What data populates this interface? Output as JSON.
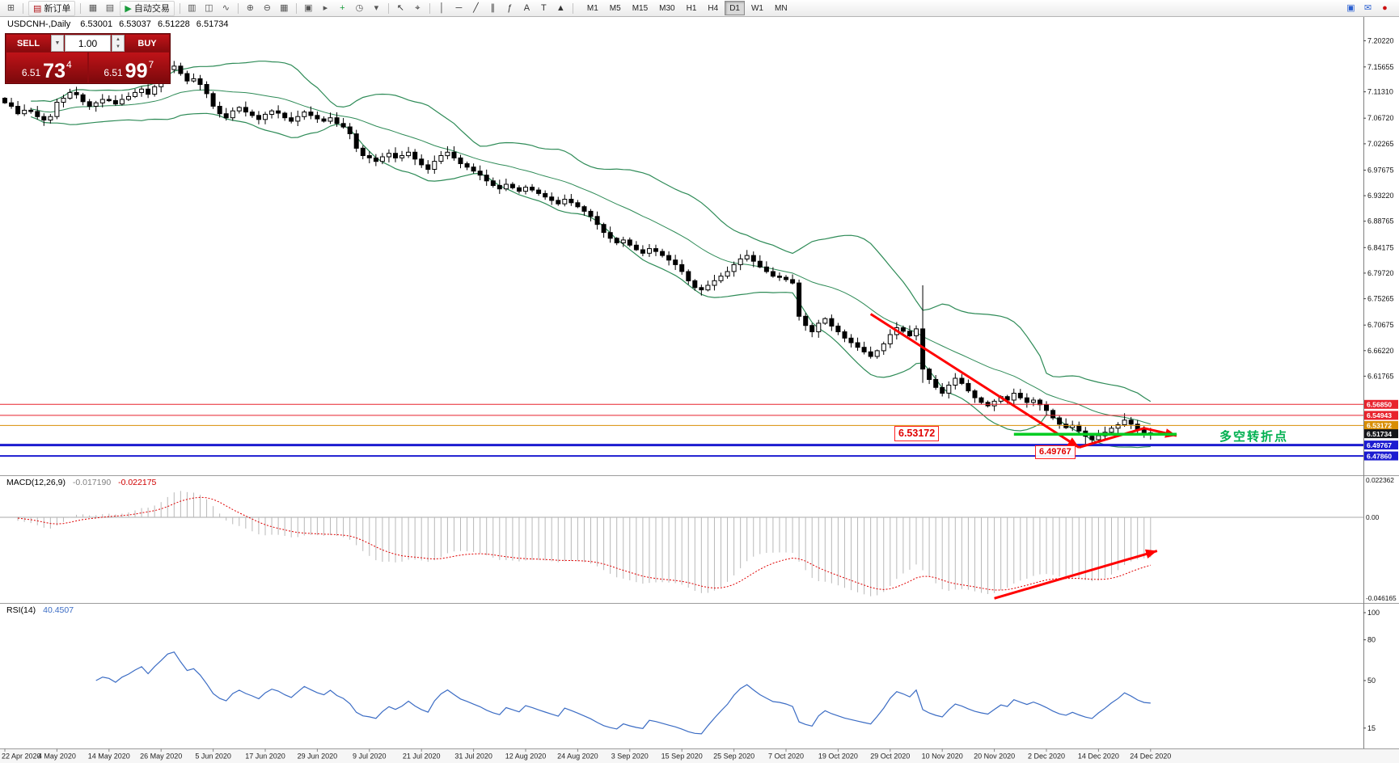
{
  "toolbar": {
    "new_order_label": "新订单",
    "auto_trading_label": "自动交易",
    "timeframes": [
      "M1",
      "M5",
      "M15",
      "M30",
      "H1",
      "H4",
      "D1",
      "W1",
      "MN"
    ],
    "active_timeframe": "D1",
    "icons": [
      {
        "name": "new-chart-icon",
        "glyph": "⊞",
        "color": "#555"
      },
      {
        "name": "separator"
      },
      {
        "name": "new-order-button",
        "glyph": "▤",
        "color": "#b01015",
        "label_key": "new_order"
      },
      {
        "name": "separator"
      },
      {
        "name": "charts-icon",
        "glyph": "▦",
        "color": "#555"
      },
      {
        "name": "profiles-icon",
        "glyph": "▤",
        "color": "#555"
      },
      {
        "name": "auto-trading-button",
        "glyph": "▶",
        "color": "#1a9c3c",
        "label_key": "auto_trading"
      },
      {
        "name": "separator"
      },
      {
        "name": "bar-chart-icon",
        "glyph": "▥",
        "color": "#555"
      },
      {
        "name": "candlestick-chart-icon",
        "glyph": "◫",
        "color": "#555"
      },
      {
        "name": "line-chart-icon",
        "glyph": "∿",
        "color": "#555"
      },
      {
        "name": "separator"
      },
      {
        "name": "zoom-in-icon",
        "glyph": "⊕",
        "color": "#555"
      },
      {
        "name": "zoom-out-icon",
        "glyph": "⊖",
        "color": "#555"
      },
      {
        "name": "tile-windows-icon",
        "glyph": "▦",
        "color": "#555"
      },
      {
        "name": "separator"
      },
      {
        "name": "arrange-windows-icon",
        "glyph": "▣",
        "color": "#555"
      },
      {
        "name": "step-forward-icon",
        "glyph": "▸",
        "color": "#555"
      },
      {
        "name": "indicators-icon",
        "glyph": "+",
        "color": "#1a9c3c"
      },
      {
        "name": "periods-icon",
        "glyph": "◷",
        "color": "#555"
      },
      {
        "name": "templates-icon",
        "glyph": "▾",
        "color": "#555"
      },
      {
        "name": "separator"
      },
      {
        "name": "cursor-icon",
        "glyph": "↖",
        "color": "#333"
      },
      {
        "name": "crosshair-icon",
        "glyph": "⌖",
        "color": "#333"
      },
      {
        "name": "separator"
      },
      {
        "name": "vertical-line-icon",
        "glyph": "│",
        "color": "#333"
      },
      {
        "name": "horizontal-line-icon",
        "glyph": "─",
        "color": "#333"
      },
      {
        "name": "trendline-icon",
        "glyph": "╱",
        "color": "#333"
      },
      {
        "name": "channel-icon",
        "glyph": "∥",
        "color": "#333"
      },
      {
        "name": "fibonacci-icon",
        "glyph": "ƒ",
        "color": "#333"
      },
      {
        "name": "text-icon",
        "glyph": "A",
        "color": "#333"
      },
      {
        "name": "label-icon",
        "glyph": "T",
        "color": "#333"
      },
      {
        "name": "shapes-icon",
        "glyph": "▲",
        "color": "#333"
      },
      {
        "name": "separator"
      }
    ],
    "right_icons": [
      {
        "name": "chart-window-icon",
        "glyph": "▣",
        "color": "#2a5fd0"
      },
      {
        "name": "mail-icon",
        "glyph": "✉",
        "color": "#2a5fd0"
      },
      {
        "name": "alert-icon",
        "glyph": "●",
        "color": "#cc1111"
      }
    ]
  },
  "chart_header": {
    "symbol": "USDCNH-,Daily",
    "open": "6.53001",
    "high": "6.53037",
    "low": "6.51228",
    "close": "6.51734"
  },
  "trade_panel": {
    "sell_label": "SELL",
    "buy_label": "BUY",
    "volume": "1.00",
    "sell_price": {
      "prefix": "6.51",
      "big": "73",
      "sup": "4"
    },
    "buy_price": {
      "prefix": "6.51",
      "big": "99",
      "sup": "7"
    }
  },
  "annotations": {
    "upper_level_box": "6.53172",
    "lower_level_box": "6.49767",
    "turning_point": "多空转折点"
  },
  "macd_label": {
    "name": "MACD(12,26,9)",
    "value_main": "-0.017190",
    "value_signal": "-0.022175"
  },
  "rsi_label": {
    "name": "RSI(14)",
    "value": "40.4507"
  },
  "chart_data": [
    {
      "type": "candlestick",
      "title": "USDCNH- Daily",
      "open_first": 7.102,
      "closes": [
        7.094,
        7.088,
        7.075,
        7.081,
        7.079,
        7.07,
        7.064,
        7.07,
        7.095,
        7.102,
        7.112,
        7.108,
        7.096,
        7.088,
        7.094,
        7.1,
        7.098,
        7.092,
        7.1,
        7.105,
        7.112,
        7.118,
        7.109,
        7.122,
        7.135,
        7.152,
        7.158,
        7.145,
        7.132,
        7.136,
        7.126,
        7.11,
        7.088,
        7.075,
        7.068,
        7.08,
        7.086,
        7.078,
        7.072,
        7.065,
        7.074,
        7.08,
        7.076,
        7.068,
        7.062,
        7.07,
        7.078,
        7.072,
        7.066,
        7.062,
        7.068,
        7.058,
        7.052,
        7.04,
        7.015,
        7.002,
        6.998,
        6.992,
        7.0,
        7.006,
        6.998,
        7.002,
        7.008,
        6.996,
        6.986,
        6.978,
        6.992,
        7.002,
        7.008,
        6.998,
        6.988,
        6.982,
        6.975,
        6.968,
        6.958,
        6.95,
        6.944,
        6.952,
        6.946,
        6.94,
        6.947,
        6.942,
        6.936,
        6.93,
        6.924,
        6.918,
        6.926,
        6.92,
        6.913,
        6.905,
        6.896,
        6.882,
        6.868,
        6.858,
        6.85,
        6.855,
        6.846,
        6.838,
        6.832,
        6.84,
        6.835,
        6.828,
        6.82,
        6.812,
        6.8,
        6.784,
        6.772,
        6.768,
        6.776,
        6.784,
        6.792,
        6.8,
        6.812,
        6.822,
        6.828,
        6.818,
        6.808,
        6.8,
        6.792,
        6.79,
        6.786,
        6.78,
        6.722,
        6.706,
        6.695,
        6.71,
        6.718,
        6.705,
        6.695,
        6.684,
        6.676,
        6.668,
        6.66,
        6.652,
        6.662,
        6.674,
        6.69,
        6.702,
        6.696,
        6.688,
        6.7,
        6.63,
        6.612,
        6.598,
        6.588,
        6.602,
        6.614,
        6.605,
        6.592,
        6.58,
        6.572,
        6.566,
        6.574,
        6.582,
        6.576,
        6.588,
        6.58,
        6.572,
        6.576,
        6.568,
        6.558,
        6.545,
        6.534,
        6.528,
        6.532,
        6.522,
        6.513,
        6.507,
        6.514,
        6.52,
        6.527,
        6.533,
        6.541,
        6.534,
        6.525,
        6.519,
        6.5173
      ],
      "wick_overrides": {
        "25": {
          "high": 7.163
        },
        "26": {
          "high": 7.167
        },
        "122": {
          "high": 6.786
        },
        "141": {
          "high": 6.776,
          "low": 6.606
        },
        "166": {
          "low": 6.499
        },
        "167": {
          "low": 6.497
        },
        "172": {
          "high": 6.553
        }
      },
      "bollinger": {
        "period": 20,
        "deviation": 2,
        "color": "#2e8b57"
      },
      "price_ticks": [
        "7.20220",
        "7.15655",
        "7.11310",
        "7.06720",
        "7.02265",
        "6.97675",
        "6.93220",
        "6.88765",
        "6.84175",
        "6.79720",
        "6.75265",
        "6.70675",
        "6.66220",
        "6.61765"
      ],
      "levels": [
        {
          "price": 6.5685,
          "label": "6.56850",
          "color": "#e8232d",
          "width": 1
        },
        {
          "price": 6.54943,
          "label": "6.54943",
          "color": "#e8232d",
          "width": 1
        },
        {
          "price": 6.53172,
          "label": "6.53172",
          "color": "#d98e04",
          "width": 1
        },
        {
          "price": 6.51734,
          "label": "6.51734",
          "color": "#15161a",
          "width": 0
        },
        {
          "price": 6.49767,
          "label": "6.49767",
          "color": "#1b1bd0",
          "width": 3
        },
        {
          "price": 6.4786,
          "label": "6.47860",
          "color": "#1b1bd0",
          "width": 2
        }
      ],
      "drawings": {
        "down_arrow": {
          "from": {
            "i": 133,
            "p": 6.726
          },
          "to": {
            "i": 165,
            "p": 6.4935
          },
          "color": "#ff0000",
          "width": 3
        },
        "rebound_line": {
          "from": {
            "i": 165,
            "p": 6.4935
          },
          "to": {
            "i": 175,
            "p": 6.527
          },
          "color": "#ff0000",
          "width": 3
        },
        "pullback_arrow": {
          "from": {
            "i": 175,
            "p": 6.527
          },
          "to": {
            "i": 180,
            "p": 6.514
          },
          "color": "#ff0000",
          "width": 3
        },
        "support_line": {
          "i1": 155,
          "i2": 180,
          "p": 6.5165,
          "color": "#00cc22",
          "width": 3.5
        }
      },
      "x_dates": [
        "22 Apr 2020",
        "4 May 2020",
        "14 May 2020",
        "26 May 2020",
        "5 Jun 2020",
        "17 Jun 2020",
        "29 Jun 2020",
        "9 Jul 2020",
        "21 Jul 2020",
        "31 Jul 2020",
        "12 Aug 2020",
        "24 Aug 2020",
        "3 Sep 2020",
        "15 Sep 2020",
        "25 Sep 2020",
        "7 Oct 2020",
        "19 Oct 2020",
        "29 Oct 2020",
        "10 Nov 2020",
        "20 Nov 2020",
        "2 Dec 2020",
        "14 Dec 2020",
        "24 Dec 2020"
      ]
    },
    {
      "type": "bar",
      "name": "MACD",
      "params": [
        12,
        26,
        9
      ],
      "histogram_color": "#b8b8b8",
      "signal_color": "#e00000",
      "axis_labels": [
        "0.022362",
        "0.00",
        "-0.046165"
      ],
      "current_main": -0.01719,
      "current_signal": -0.022175,
      "trend_arrow": {
        "from": {
          "i": 152,
          "v": -0.0435
        },
        "to": {
          "i": 177,
          "v": -0.018
        },
        "color": "#ff0000",
        "width": 3
      }
    },
    {
      "type": "line",
      "name": "RSI",
      "period": 14,
      "current": 40.4507,
      "line_color": "#3b6cc4",
      "axis_labels": [
        "100",
        "80",
        "50",
        "15"
      ]
    }
  ]
}
